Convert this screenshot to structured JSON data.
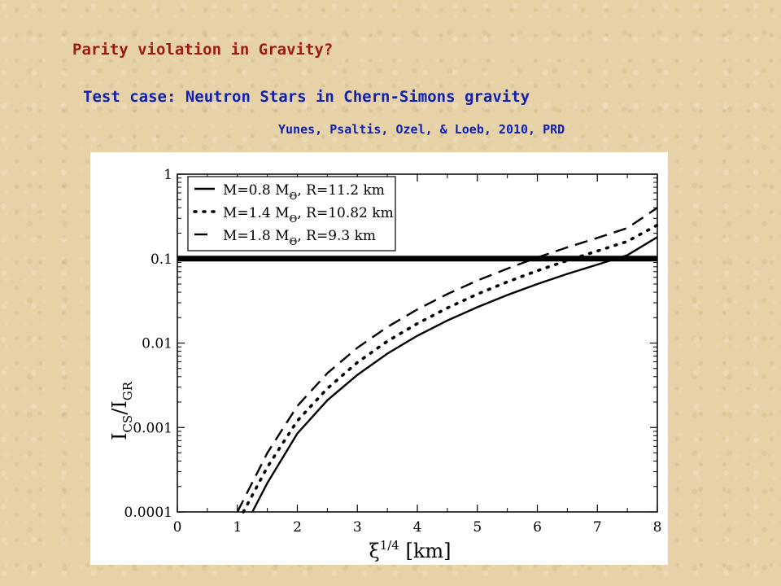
{
  "slide": {
    "title": "Parity violation in Gravity?",
    "subtitle": "Test case: Neutron Stars in Chern-Simons gravity",
    "citation": "Yunes, Psaltis, Ozel, &  Loeb, 2010, PRD"
  },
  "colors": {
    "title": "#9a1c10",
    "subtitle": "#1020b0",
    "background": "#e6d2a6",
    "plot_ink": "#000000"
  },
  "chart_data": {
    "type": "line",
    "title": "",
    "xlabel": "ξ^{1/4} [km]",
    "ylabel": "I_CS/I_GR",
    "xlim": [
      0,
      8
    ],
    "ylim": [
      0.0001,
      1
    ],
    "yscale": "log",
    "x_ticks": [
      "0",
      "1",
      "2",
      "3",
      "4",
      "5",
      "6",
      "7",
      "8"
    ],
    "y_ticks": [
      "0.0001",
      "0.001",
      "0.01",
      "0.1",
      "1"
    ],
    "legend_position": "top-left",
    "reference_line": {
      "y": 0.1
    },
    "series": [
      {
        "name": "M=0.8 M_Θ, R=11.2 km",
        "legend_mass": "M=0.8 M",
        "legend_radius": ", R=11.2 km",
        "style": "solid",
        "x": [
          1.25,
          1.5,
          2,
          2.5,
          3,
          3.5,
          4,
          4.5,
          5,
          5.5,
          6,
          6.5,
          7,
          7.5,
          8
        ],
        "y": [
          0.0001,
          0.00022,
          0.00085,
          0.0021,
          0.0042,
          0.0075,
          0.0122,
          0.0185,
          0.0266,
          0.037,
          0.05,
          0.066,
          0.085,
          0.11,
          0.18
        ]
      },
      {
        "name": "M=1.4 M_Θ, R=10.82 km",
        "legend_mass": "M=1.4 M",
        "legend_radius": ", R=10.82 km",
        "style": "dotted",
        "x": [
          1.1,
          1.5,
          2,
          2.5,
          3,
          3.5,
          4,
          4.5,
          5,
          5.5,
          6,
          6.5,
          7,
          7.5,
          8
        ],
        "y": [
          0.0001,
          0.00034,
          0.0012,
          0.0029,
          0.0059,
          0.0105,
          0.017,
          0.026,
          0.038,
          0.053,
          0.072,
          0.095,
          0.123,
          0.16,
          0.25
        ]
      },
      {
        "name": "M=1.8 M_Θ, R=9.3 km",
        "legend_mass": "M=1.8 M",
        "legend_radius": ", R=9.3 km",
        "style": "dashed",
        "x": [
          1.0,
          1.5,
          2,
          2.5,
          3,
          3.5,
          4,
          4.5,
          5,
          5.5,
          6,
          6.5,
          7,
          7.5,
          8
        ],
        "y": [
          0.0001,
          0.0005,
          0.0018,
          0.0044,
          0.0088,
          0.0155,
          0.025,
          0.038,
          0.055,
          0.076,
          0.103,
          0.136,
          0.176,
          0.23,
          0.4
        ]
      }
    ]
  }
}
